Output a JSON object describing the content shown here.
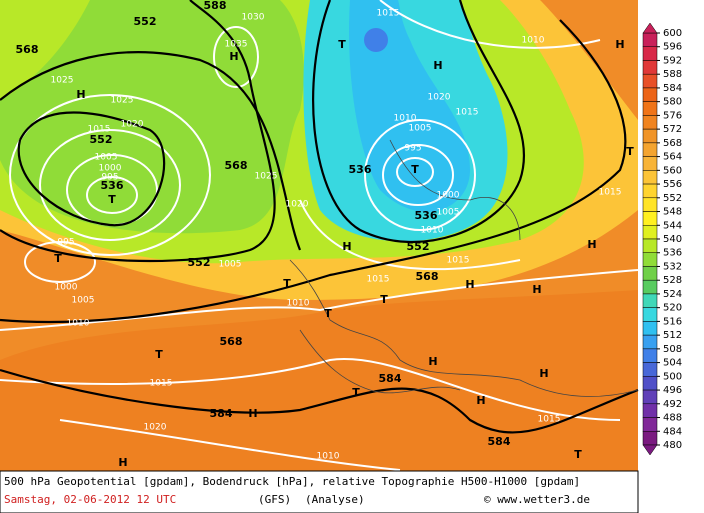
{
  "footer": {
    "line1": "500 hPa Geopotential [gpdam], Bodendruck [hPa], relative Topographie H500-H1000 [gpdam]",
    "date": "Samstag, 02-06-2012  12 UTC",
    "model": "(GFS)",
    "run": "(Analyse)",
    "credit": "© www.wetter3.de"
  },
  "colorbar": {
    "ticks": [
      600,
      596,
      592,
      588,
      584,
      580,
      576,
      572,
      568,
      564,
      560,
      556,
      552,
      548,
      544,
      540,
      536,
      532,
      528,
      524,
      520,
      516,
      512,
      508,
      504,
      500,
      496,
      492,
      488,
      484,
      480
    ],
    "colors": [
      "#c8205a",
      "#d82848",
      "#e03838",
      "#e85028",
      "#ec6418",
      "#f07418",
      "#f08420",
      "#f09428",
      "#f4a430",
      "#f8b438",
      "#fcc438",
      "#ffd430",
      "#ffe428",
      "#fff020",
      "#e0f020",
      "#b8e828",
      "#90dc38",
      "#70d048",
      "#58cc60",
      "#40d8b8",
      "#38d8e0",
      "#30c0f0",
      "#38a0f0",
      "#4080e8",
      "#4868d8",
      "#5050c8",
      "#6040b8",
      "#7030a8",
      "#802898",
      "#7a1a80"
    ]
  },
  "map_labels": [
    "552",
    "588",
    "1030",
    "1015",
    "568",
    "1035",
    "H",
    "T",
    "1010",
    "H",
    "1025",
    "H",
    "1025",
    "1020",
    "H",
    "1020",
    "1015",
    "1010",
    "1005",
    "1015",
    "552",
    "1005",
    "1000",
    "995",
    "536",
    "T",
    "568",
    "1025",
    "995",
    "536",
    "T",
    "1000",
    "1005",
    "536",
    "1010",
    "T",
    "1015",
    "1020",
    "995",
    "T",
    "H",
    "552",
    "H",
    "552",
    "1005",
    "1015",
    "1015",
    "568",
    "T",
    "H",
    "H",
    "1000",
    "1005",
    "1010",
    "T",
    "T",
    "1010",
    "568",
    "H",
    "T",
    "H",
    "1015",
    "584",
    "T",
    "H",
    "584",
    "H",
    "1015",
    "1020",
    "584",
    "T",
    "H",
    "1010"
  ]
}
